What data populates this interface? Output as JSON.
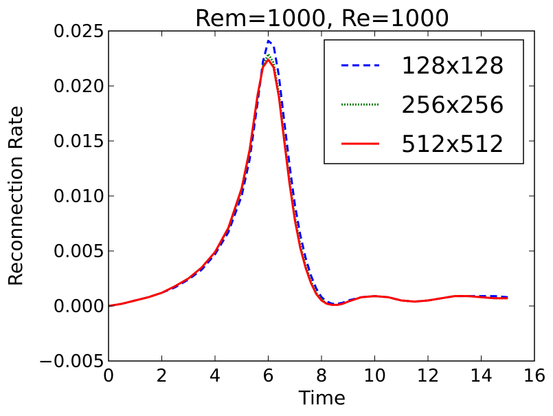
{
  "chart_data": {
    "type": "line",
    "title": "Rem=1000, Re=1000",
    "xlabel": "Time",
    "ylabel": "Reconnection Rate",
    "xlim": [
      0,
      16
    ],
    "ylim": [
      -0.005,
      0.025
    ],
    "xticks": [
      0,
      2,
      4,
      6,
      8,
      10,
      12,
      14,
      16
    ],
    "xtick_labels": [
      "0",
      "2",
      "4",
      "6",
      "8",
      "10",
      "12",
      "14",
      "16"
    ],
    "yticks": [
      -0.005,
      0.0,
      0.005,
      0.01,
      0.015,
      0.02,
      0.025
    ],
    "ytick_labels": [
      "−0.005",
      "0.000",
      "0.005",
      "0.010",
      "0.015",
      "0.020",
      "0.025"
    ],
    "grid": false,
    "legend_position": "upper-right",
    "series": [
      {
        "name": "128x128",
        "color": "#0000ff",
        "style": "dashed",
        "x": [
          0,
          0.5,
          1,
          1.5,
          2,
          2.5,
          3,
          3.5,
          4,
          4.5,
          5,
          5.3,
          5.6,
          5.8,
          6,
          6.2,
          6.4,
          6.6,
          6.8,
          7,
          7.2,
          7.4,
          7.6,
          7.8,
          8,
          8.2,
          8.4,
          8.6,
          8.8,
          9,
          9.5,
          10,
          10.5,
          11,
          11.5,
          12,
          12.5,
          13,
          13.5,
          14,
          14.5,
          15
        ],
        "y": [
          0.0,
          0.0002,
          0.0005,
          0.0008,
          0.0012,
          0.0017,
          0.0024,
          0.0033,
          0.0047,
          0.0067,
          0.01,
          0.0133,
          0.0185,
          0.0222,
          0.0241,
          0.0237,
          0.0209,
          0.0168,
          0.0128,
          0.0092,
          0.0065,
          0.0044,
          0.0028,
          0.0016,
          0.0008,
          0.0004,
          0.0002,
          0.0002,
          0.0003,
          0.0005,
          0.0008,
          0.0009,
          0.0008,
          0.0005,
          0.0004,
          0.0005,
          0.0007,
          0.0009,
          0.0009,
          0.0009,
          0.0009,
          0.0008
        ]
      },
      {
        "name": "256x256",
        "color": "#008000",
        "style": "dotted",
        "x": [
          0,
          0.5,
          1,
          1.5,
          2,
          2.5,
          3,
          3.5,
          4,
          4.5,
          5,
          5.3,
          5.6,
          5.8,
          6,
          6.2,
          6.4,
          6.6,
          6.8,
          7,
          7.2,
          7.4,
          7.6,
          7.8,
          8,
          8.2,
          8.4,
          8.6,
          8.8,
          9,
          9.5,
          10,
          10.5,
          11,
          11.5,
          12,
          12.5,
          13,
          13.5,
          14,
          14.5,
          15
        ],
        "y": [
          0.0,
          0.0002,
          0.0005,
          0.0008,
          0.0012,
          0.0018,
          0.0025,
          0.0035,
          0.0049,
          0.007,
          0.0105,
          0.014,
          0.019,
          0.0218,
          0.0229,
          0.0221,
          0.0193,
          0.0153,
          0.0114,
          0.0081,
          0.0056,
          0.0037,
          0.0023,
          0.0012,
          0.0006,
          0.0002,
          0.0001,
          0.0001,
          0.0002,
          0.0004,
          0.0008,
          0.0009,
          0.0008,
          0.0005,
          0.0004,
          0.0005,
          0.0007,
          0.0009,
          0.0009,
          0.0008,
          0.0007,
          0.0007
        ]
      },
      {
        "name": "512x512",
        "color": "#ff0000",
        "style": "solid",
        "x": [
          0,
          0.5,
          1,
          1.5,
          2,
          2.5,
          3,
          3.5,
          4,
          4.5,
          5,
          5.3,
          5.6,
          5.8,
          6,
          6.2,
          6.4,
          6.6,
          6.8,
          7,
          7.2,
          7.4,
          7.6,
          7.8,
          8,
          8.2,
          8.4,
          8.6,
          8.8,
          9,
          9.5,
          10,
          10.5,
          11,
          11.5,
          12,
          12.5,
          13,
          13.5,
          14,
          14.5,
          15
        ],
        "y": [
          0.0,
          0.0002,
          0.0005,
          0.0008,
          0.0012,
          0.0018,
          0.0025,
          0.0035,
          0.0049,
          0.0071,
          0.0107,
          0.0142,
          0.0192,
          0.0217,
          0.0224,
          0.0217,
          0.019,
          0.015,
          0.0111,
          0.0078,
          0.0053,
          0.0035,
          0.0021,
          0.0011,
          0.0005,
          0.0002,
          0.0001,
          0.0001,
          0.0002,
          0.0004,
          0.0008,
          0.0009,
          0.0008,
          0.0005,
          0.0004,
          0.0005,
          0.0007,
          0.0009,
          0.0009,
          0.0008,
          0.0007,
          0.0007
        ]
      }
    ]
  }
}
